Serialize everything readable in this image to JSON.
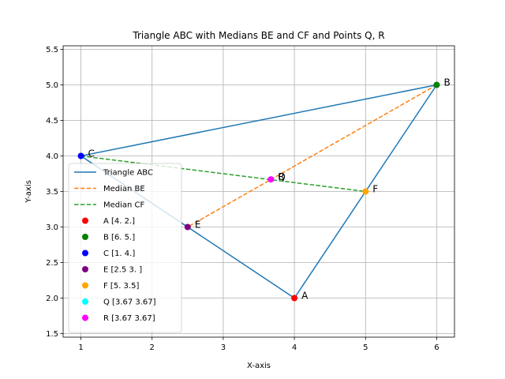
{
  "chart_data": {
    "type": "line",
    "title": "Triangle ABC with Medians BE and CF and Points Q, R",
    "xlabel": "X-axis",
    "ylabel": "Y-axis",
    "xlim": [
      0.75,
      6.25
    ],
    "ylim": [
      1.45,
      5.55
    ],
    "xticks": [
      1,
      2,
      3,
      4,
      5,
      6
    ],
    "yticks": [
      1.5,
      2.0,
      2.5,
      3.0,
      3.5,
      4.0,
      4.5,
      5.0,
      5.5
    ],
    "xtick_labels": [
      "1",
      "2",
      "3",
      "4",
      "5",
      "6"
    ],
    "ytick_labels": [
      "1.5",
      "2.0",
      "2.5",
      "3.0",
      "3.5",
      "4.0",
      "4.5",
      "5.0",
      "5.5"
    ],
    "grid": true,
    "legend_position": "lower-left",
    "lines": [
      {
        "name": "Triangle ABC",
        "style": "solid",
        "color": "#1f77b4",
        "x": [
          4,
          6,
          1,
          4
        ],
        "y": [
          2,
          5,
          4,
          2
        ]
      },
      {
        "name": "Median BE",
        "style": "dashed",
        "color": "#ff7f0e",
        "x": [
          6,
          2.5
        ],
        "y": [
          5,
          3
        ]
      },
      {
        "name": "Median CF",
        "style": "dashed",
        "color": "#2ca02c",
        "x": [
          1,
          5
        ],
        "y": [
          4,
          3.5
        ]
      }
    ],
    "points": [
      {
        "label": "A",
        "legend": "A [4. 2.]",
        "x": 4,
        "y": 2,
        "color": "#ff0000",
        "show_label": true
      },
      {
        "label": "B",
        "legend": "B [6. 5.]",
        "x": 6,
        "y": 5,
        "color": "#008000",
        "show_label": true
      },
      {
        "label": "C",
        "legend": "C [1. 4.]",
        "x": 1,
        "y": 4,
        "color": "#0000ff",
        "show_label": true
      },
      {
        "label": "E",
        "legend": "E [2.5 3. ]",
        "x": 2.5,
        "y": 3,
        "color": "#800080",
        "show_label": true
      },
      {
        "label": "F",
        "legend": "F [5.  3.5]",
        "x": 5,
        "y": 3.5,
        "color": "#ffa500",
        "show_label": true
      },
      {
        "label": "Q",
        "legend": "Q [3.67 3.67]",
        "x": 3.67,
        "y": 3.67,
        "color": "#00ffff",
        "show_label": true
      },
      {
        "label": "R",
        "legend": "R [3.67 3.67]",
        "x": 3.67,
        "y": 3.67,
        "color": "#ff00ff",
        "show_label": true
      }
    ]
  }
}
